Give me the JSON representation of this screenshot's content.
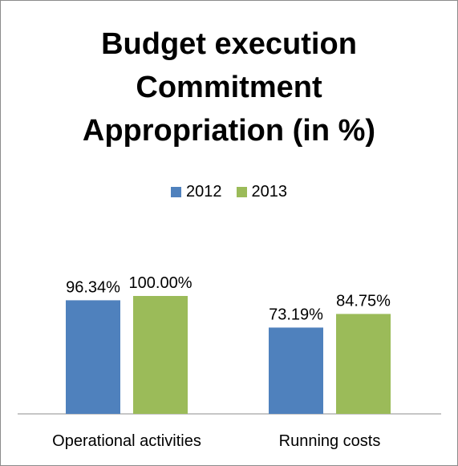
{
  "chart_data": {
    "type": "bar",
    "title_lines": [
      "Budget execution",
      "Commitment",
      "Appropriation  (in %)"
    ],
    "categories": [
      "Operational activities",
      "Running costs"
    ],
    "series": [
      {
        "name": "2012",
        "values": [
          96.34,
          73.19
        ],
        "labels": [
          "96.34%",
          "73.19%"
        ],
        "color": "#4f81bd"
      },
      {
        "name": "2013",
        "values": [
          100.0,
          84.75
        ],
        "labels": [
          "100.00%",
          "84.75%"
        ],
        "color": "#9bbb59"
      }
    ],
    "legend_position": "top",
    "ylim": [
      0,
      100
    ],
    "grid": false
  }
}
